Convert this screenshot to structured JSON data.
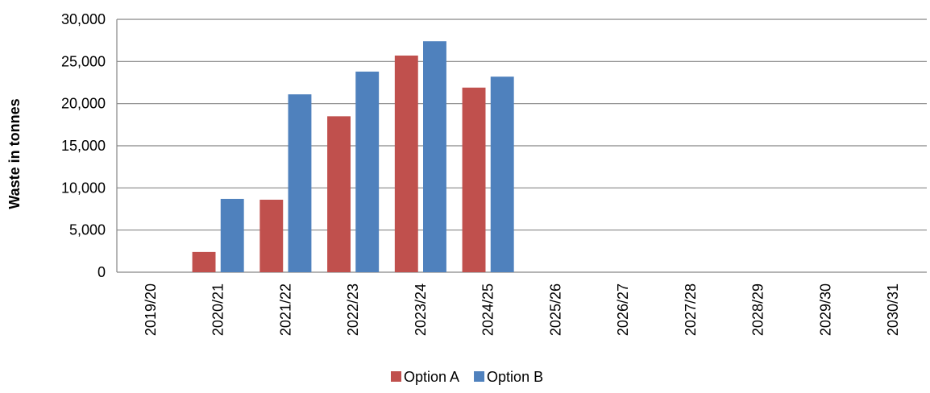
{
  "chart_data": {
    "type": "bar",
    "title": "",
    "xlabel": "",
    "ylabel": "Waste in tonnes",
    "categories": [
      "2019/20",
      "2020/21",
      "2021/22",
      "2022/23",
      "2023/24",
      "2024/25",
      "2025/26",
      "2026/27",
      "2027/28",
      "2028/29",
      "2029/30",
      "2030/31"
    ],
    "series": [
      {
        "name": "Option A",
        "color": "#c0504d",
        "values": [
          0,
          2400,
          8600,
          18500,
          25700,
          21900,
          0,
          0,
          0,
          0,
          0,
          0
        ]
      },
      {
        "name": "Option B",
        "color": "#4f81bd",
        "values": [
          0,
          8700,
          21100,
          23800,
          27400,
          23200,
          0,
          0,
          0,
          0,
          0,
          0
        ]
      }
    ],
    "ylim": [
      0,
      30000
    ],
    "yticks": [
      0,
      5000,
      10000,
      15000,
      20000,
      25000,
      30000
    ],
    "ytick_labels": [
      "0",
      "5,000",
      "10,000",
      "15,000",
      "20,000",
      "25,000",
      "30,000"
    ],
    "grid": true,
    "legend_position": "bottom"
  }
}
